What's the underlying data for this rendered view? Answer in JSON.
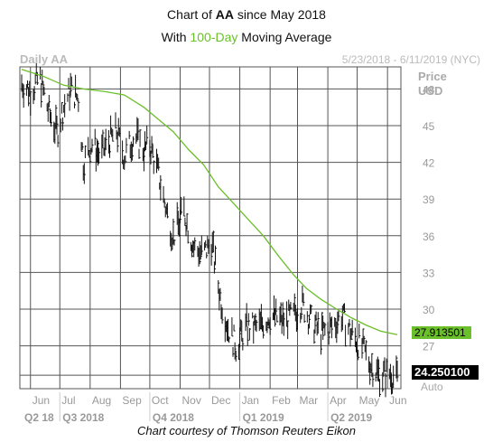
{
  "header": {
    "title_prefix": "Chart of ",
    "title_ticker": "AA",
    "title_suffix": " since May 2018",
    "subtitle_prefix": "With ",
    "subtitle_highlight": "100-Day",
    "subtitle_suffix": " Moving Average"
  },
  "chart_header": {
    "left_label": "Daily AA",
    "right_label": "5/23/2018 - 6/11/2019 (NYC)",
    "price_label": "Price",
    "currency_label": "USD",
    "auto_label": "Auto"
  },
  "caption": "Chart courtesy of Thomson Reuters Eikon",
  "colors": {
    "price_bars": "#111111",
    "moving_average": "#6abf2a",
    "grid": "#555555",
    "header_text": "#bbbbbb",
    "axis_text": "#999999"
  },
  "chart_data": {
    "type": "line",
    "title": "Chart of AA since May 2018",
    "subtitle": "With 100-Day Moving Average",
    "y_axis": {
      "label": "Price USD",
      "ticks": [
        48,
        45,
        42,
        39,
        36,
        33,
        30,
        27
      ],
      "range": [
        23.5,
        49.8
      ]
    },
    "x_axis": {
      "months": [
        "Jun",
        "Jul",
        "Aug",
        "Sep",
        "Oct",
        "Nov",
        "Dec",
        "Jan",
        "Feb",
        "Mar",
        "Apr",
        "May",
        "Jun"
      ],
      "quarters": [
        "Q2 18",
        "Q3 2018",
        "Q4 2018",
        "Q1 2019",
        "Q2 2019"
      ],
      "date_range": [
        "2018-05-23",
        "2019-06-11"
      ]
    },
    "grid": true,
    "series": [
      {
        "name": "AA",
        "style": "daily high-low bars",
        "points": [
          [
            "2018-05-23",
            48.5
          ],
          [
            "2018-06-01",
            47.8
          ],
          [
            "2018-06-10",
            49.0
          ],
          [
            "2018-06-20",
            46.0
          ],
          [
            "2018-06-28",
            44.5
          ],
          [
            "2018-07-05",
            46.5
          ],
          [
            "2018-07-12",
            48.0
          ],
          [
            "2018-07-20",
            47.2
          ],
          [
            "2018-07-25",
            42.0
          ],
          [
            "2018-08-03",
            43.5
          ],
          [
            "2018-08-12",
            42.5
          ],
          [
            "2018-08-20",
            43.8
          ],
          [
            "2018-08-28",
            44.5
          ],
          [
            "2018-09-05",
            42.5
          ],
          [
            "2018-09-15",
            44.2
          ],
          [
            "2018-09-25",
            43.0
          ],
          [
            "2018-10-01",
            43.5
          ],
          [
            "2018-10-10",
            41.0
          ],
          [
            "2018-10-18",
            38.0
          ],
          [
            "2018-10-25",
            36.0
          ],
          [
            "2018-11-05",
            38.0
          ],
          [
            "2018-11-15",
            35.0
          ],
          [
            "2018-11-25",
            34.5
          ],
          [
            "2018-12-03",
            35.5
          ],
          [
            "2018-12-12",
            31.0
          ],
          [
            "2018-12-20",
            28.5
          ],
          [
            "2018-12-28",
            27.0
          ],
          [
            "2019-01-08",
            28.5
          ],
          [
            "2019-01-20",
            28.5
          ],
          [
            "2019-02-01",
            29.5
          ],
          [
            "2019-02-15",
            29.0
          ],
          [
            "2019-02-25",
            29.5
          ],
          [
            "2019-03-05",
            30.5
          ],
          [
            "2019-03-15",
            29.0
          ],
          [
            "2019-03-25",
            28.0
          ],
          [
            "2019-04-05",
            28.5
          ],
          [
            "2019-04-15",
            29.5
          ],
          [
            "2019-04-25",
            28.0
          ],
          [
            "2019-05-05",
            27.0
          ],
          [
            "2019-05-15",
            25.5
          ],
          [
            "2019-05-25",
            24.5
          ],
          [
            "2019-06-03",
            24.8
          ],
          [
            "2019-06-11",
            24.25
          ]
        ],
        "last_value": "24.250100"
      },
      {
        "name": "100-Day Moving Average",
        "style": "line",
        "points": [
          [
            "2018-05-23",
            49.6
          ],
          [
            "2018-06-15",
            49.0
          ],
          [
            "2018-07-05",
            48.3
          ],
          [
            "2018-07-25",
            48.0
          ],
          [
            "2018-08-15",
            47.8
          ],
          [
            "2018-09-05",
            47.5
          ],
          [
            "2018-09-25",
            46.5
          ],
          [
            "2018-10-10",
            45.5
          ],
          [
            "2018-10-25",
            44.5
          ],
          [
            "2018-11-10",
            43.0
          ],
          [
            "2018-11-25",
            41.8
          ],
          [
            "2018-12-10",
            40.0
          ],
          [
            "2018-12-25",
            38.7
          ],
          [
            "2019-01-10",
            37.3
          ],
          [
            "2019-01-25",
            36.0
          ],
          [
            "2019-02-10",
            34.3
          ],
          [
            "2019-02-25",
            32.8
          ],
          [
            "2019-03-10",
            31.7
          ],
          [
            "2019-03-25",
            30.8
          ],
          [
            "2019-04-10",
            30.0
          ],
          [
            "2019-04-25",
            29.3
          ],
          [
            "2019-05-10",
            28.7
          ],
          [
            "2019-05-25",
            28.2
          ],
          [
            "2019-06-11",
            27.91
          ]
        ],
        "last_value": "27.913501"
      }
    ]
  }
}
